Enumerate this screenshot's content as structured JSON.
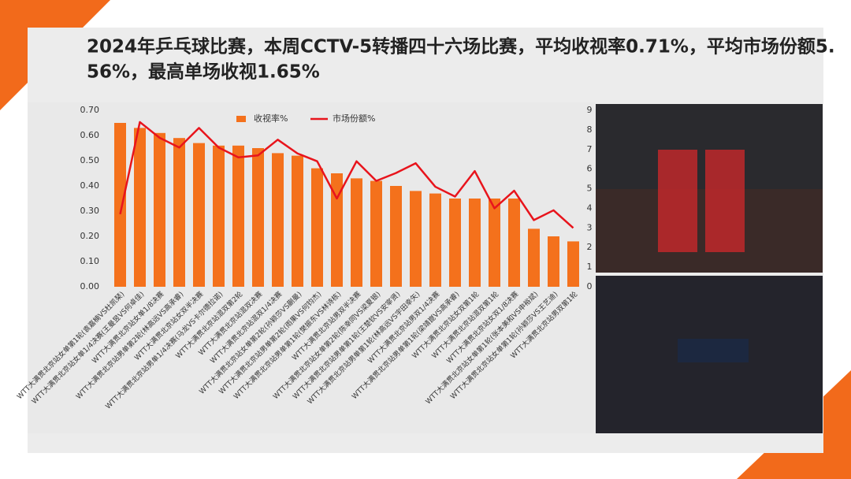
{
  "chart_data": {
    "type": "bar",
    "title": "2024年乒乓球比赛，本周CCTV-5转播四十六场比赛，平均收视率0.71%，平均市场份额5.56%，最高单场收视1.65%",
    "categories": [
      "WTT大满贯北京站女单第1轮(袁嘉楠VS杜凯琹)",
      "WTT大满贯北京站女单1/4决赛(王曼昱VS何卓佳)",
      "WTT大满贯北京站女单1/8决赛",
      "WTT大满贯北京站男单第2轮(林高远VS高承睿)",
      "WTT大满贯北京站女双半决赛",
      "WTT大满贯北京站男单1/4决赛(马龙VS卡尔德拉诺)",
      "WTT大满贯北京站混双第2轮",
      "WTT大满贯北京站混双决赛",
      "WTT大满贯北京站混双1/4决赛",
      "WTT大满贯北京站女单第2轮(孙颖莎VS蒯曼)",
      "WTT大满贯北京站男单第2轮(雨果VS何钧杰)",
      "WTT大满贯北京站男单第1轮(樊振东VS林诗栋)",
      "WTT大满贯北京站男双半决赛",
      "WTT大满贯北京站女单第2轮(陈幸同VS梁夏银)",
      "WTT大满贯北京站男单第1轮(王楚钦VS安宰贤)",
      "WTT大满贯北京站男单第1轮(林高远VS宇田幸矢)",
      "WTT大满贯北京站男双1/4决赛",
      "WTT大满贯北京站男单第1轮(梁靖崑VS高承睿)",
      "WTT大满贯北京站女双第1轮",
      "WTT大满贯北京站混双第1轮",
      "WTT大满贯北京站女双1/8决赛",
      "WTT大满贯北京站女单第1轮(张本美和VS申裕斌)",
      "WTT大满贯北京站女单第1轮(孙颖莎VS王艺迪)",
      "WTT大满贯北京站男双第1轮"
    ],
    "series": [
      {
        "name": "收视率%",
        "type": "bar",
        "color": "#f4711c",
        "values": [
          0.65,
          0.63,
          0.61,
          0.59,
          0.57,
          0.56,
          0.56,
          0.55,
          0.53,
          0.52,
          0.47,
          0.45,
          0.43,
          0.42,
          0.4,
          0.38,
          0.37,
          0.35,
          0.35,
          0.35,
          0.35,
          0.23,
          0.2,
          0.18
        ]
      },
      {
        "name": "市场份额%",
        "type": "line",
        "axis": "y2",
        "color": "#e8141c",
        "values": [
          3.7,
          8.4,
          7.6,
          7.1,
          8.1,
          7.1,
          6.6,
          6.7,
          7.5,
          6.8,
          6.4,
          4.5,
          6.4,
          5.4,
          5.8,
          6.3,
          5.1,
          4.6,
          5.9,
          4.0,
          4.9,
          3.4,
          3.9,
          3.0
        ]
      }
    ],
    "ylim": [
      0,
      0.7
    ],
    "yticks": [
      {
        "value": 0,
        "label": "0.00"
      },
      {
        "value": 0.1,
        "label": "0.10"
      },
      {
        "value": 0.2,
        "label": "0.20"
      },
      {
        "value": 0.3,
        "label": "0.30"
      },
      {
        "value": 0.4,
        "label": "0.40"
      },
      {
        "value": 0.5,
        "label": "0.50"
      },
      {
        "value": 0.6,
        "label": "0.60"
      },
      {
        "value": 0.7,
        "label": "0.70"
      }
    ],
    "y2lim": [
      0,
      9
    ],
    "y2ticks": [
      0,
      1,
      2,
      3,
      4,
      5,
      6,
      7,
      8,
      9
    ],
    "legend": "top"
  }
}
